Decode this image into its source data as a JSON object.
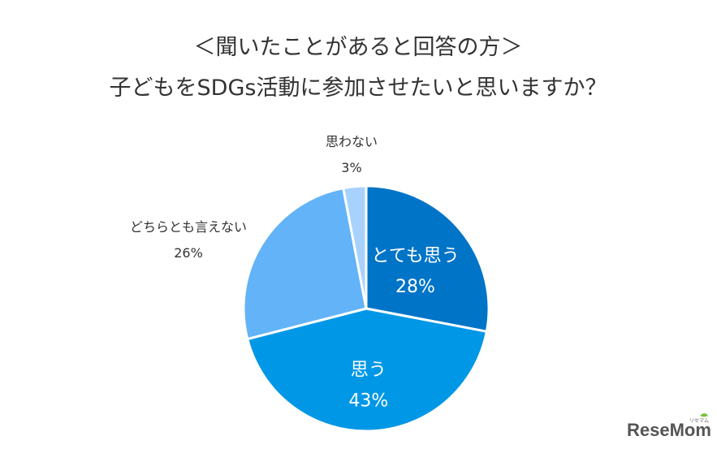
{
  "title": {
    "line1": "＜聞いたことがあると回答の方＞",
    "line2": "子どもをSDGs活動に参加させたいと思いますか？"
  },
  "chart_data": {
    "type": "pie",
    "title": "子どもをSDGs活動に参加させたいと思いますか？",
    "subtitle": "＜聞いたことがあると回答の方＞",
    "start_angle_deg": 0,
    "direction": "clockwise",
    "slices": [
      {
        "label": "とても思う",
        "value": 28,
        "value_label": "28%",
        "color": "#0074c7",
        "label_position": "inside"
      },
      {
        "label": "思う",
        "value": 43,
        "value_label": "43%",
        "color": "#0097e6",
        "label_position": "inside"
      },
      {
        "label": "どちらとも言えない",
        "value": 26,
        "value_label": "26%",
        "color": "#62b3f8",
        "label_position": "outside"
      },
      {
        "label": "思わない",
        "value": 3,
        "value_label": "3%",
        "color": "#a8d2fb",
        "label_position": "outside"
      }
    ]
  },
  "logo": {
    "text": "ReseMom",
    "small_text": "リセマム",
    "color": "#555555",
    "accent_color": "#7cc242"
  }
}
